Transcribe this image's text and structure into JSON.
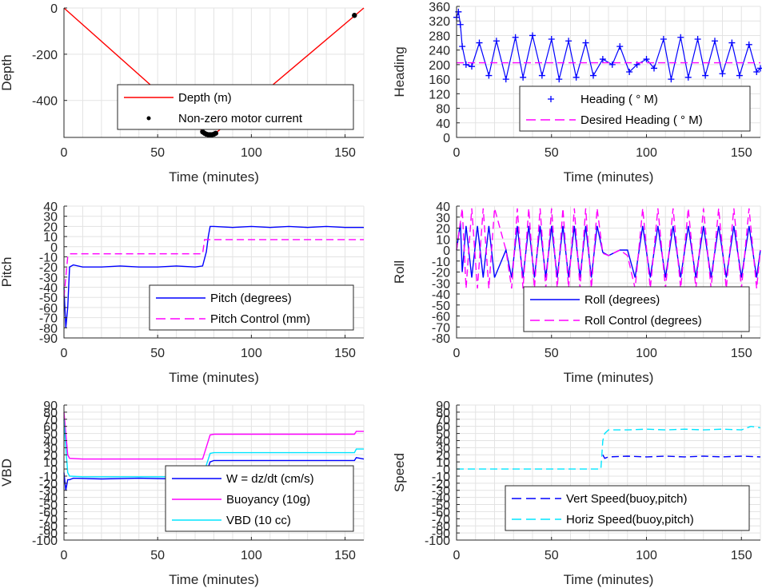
{
  "chart_data": [
    {
      "type": "line",
      "xlabel": "Time (minutes)",
      "ylabel": "Depth",
      "xlim": [
        0,
        160
      ],
      "ylim": [
        -560,
        0
      ],
      "xticks": [
        0,
        50,
        100,
        150
      ],
      "yticks": [
        0,
        -200,
        -400
      ],
      "grid": true,
      "legend": "bottom-right",
      "series": [
        {
          "name": "Depth (m)",
          "color": "#ff0000",
          "style": "solid",
          "x": [
            0,
            76,
            80,
            160
          ],
          "y": [
            0,
            -548,
            -548,
            0
          ]
        },
        {
          "name": "Non-zero motor current",
          "color": "#000000",
          "style": "dots",
          "x": [
            74,
            75,
            76,
            77,
            78,
            79,
            80,
            81,
            155
          ],
          "y": [
            -536,
            -542,
            -546,
            -548,
            -548,
            -548,
            -546,
            -542,
            -32
          ]
        }
      ]
    },
    {
      "type": "line",
      "xlabel": "Time (minutes)",
      "ylabel": "Heading",
      "xlim": [
        0,
        160
      ],
      "ylim": [
        0,
        360
      ],
      "xticks": [
        0,
        50,
        100,
        150
      ],
      "yticks": [
        0,
        40,
        80,
        120,
        160,
        200,
        240,
        280,
        320,
        360
      ],
      "grid": true,
      "legend": "bottom-right",
      "series": [
        {
          "name": "Heading ( ° M)",
          "color": "#0000ff",
          "style": "plus",
          "x": [
            0,
            1,
            2,
            3,
            5,
            8,
            12,
            17,
            21,
            26,
            31,
            35,
            40,
            45,
            50,
            54,
            59,
            63,
            68,
            72,
            77,
            82,
            86,
            91,
            95,
            100,
            104,
            109,
            113,
            118,
            122,
            127,
            131,
            136,
            140,
            145,
            149,
            154,
            158,
            160
          ],
          "y": [
            330,
            345,
            310,
            250,
            200,
            195,
            260,
            170,
            265,
            160,
            275,
            165,
            280,
            170,
            270,
            160,
            265,
            165,
            260,
            170,
            215,
            200,
            250,
            180,
            200,
            215,
            190,
            270,
            160,
            275,
            165,
            270,
            170,
            265,
            175,
            260,
            170,
            255,
            180,
            190
          ]
        },
        {
          "name": "Desired Heading (    ° M)",
          "color": "#ff00ff",
          "style": "dash",
          "x": [
            0,
            160
          ],
          "y": [
            205,
            205
          ]
        }
      ]
    },
    {
      "type": "line",
      "xlabel": "Time (minutes)",
      "ylabel": "Pitch",
      "xlim": [
        0,
        160
      ],
      "ylim": [
        -90,
        40
      ],
      "xticks": [
        0,
        50,
        100,
        150
      ],
      "yticks": [
        40,
        30,
        20,
        10,
        0,
        -10,
        -20,
        -30,
        -40,
        -50,
        -60,
        -70,
        -80,
        -90
      ],
      "grid": true,
      "legend": "bottom-right",
      "series": [
        {
          "name": "Pitch (degrees)",
          "color": "#0000ff",
          "style": "solid",
          "x": [
            0,
            1,
            2,
            3,
            5,
            10,
            20,
            30,
            40,
            50,
            60,
            70,
            74,
            76,
            77,
            78,
            80,
            90,
            100,
            110,
            120,
            130,
            140,
            150,
            160
          ],
          "y": [
            -40,
            -80,
            -60,
            -20,
            -18,
            -20,
            -20,
            -19,
            -20,
            -20,
            -19,
            -20,
            -19,
            -5,
            10,
            20,
            20,
            19,
            20,
            19,
            20,
            19,
            20,
            19,
            19
          ]
        },
        {
          "name": "Pitch Control (mm)",
          "color": "#ff00ff",
          "style": "dash",
          "x": [
            0,
            2,
            3,
            5,
            74,
            75,
            78,
            80,
            160
          ],
          "y": [
            -50,
            -10,
            -7,
            -7,
            -7,
            7,
            7,
            7,
            7
          ]
        }
      ]
    },
    {
      "type": "line",
      "xlabel": "Time (minutes)",
      "ylabel": "Roll",
      "xlim": [
        0,
        160
      ],
      "ylim": [
        -80,
        40
      ],
      "xticks": [
        0,
        50,
        100,
        150
      ],
      "yticks": [
        40,
        30,
        20,
        10,
        0,
        -10,
        -20,
        -30,
        -40,
        -50,
        -60,
        -70,
        -80
      ],
      "grid": true,
      "legend": "bottom-right",
      "series": [
        {
          "name": "Roll (degrees)",
          "color": "#0000ff",
          "style": "solid",
          "x": [
            0,
            2,
            3,
            5,
            8,
            11,
            14,
            17,
            20,
            26,
            29,
            32,
            35,
            38,
            41,
            44,
            47,
            50,
            53,
            56,
            59,
            62,
            65,
            68,
            71,
            74,
            77,
            80,
            86,
            90,
            94,
            98,
            102,
            106,
            110,
            114,
            118,
            122,
            126,
            130,
            134,
            138,
            142,
            146,
            150,
            154,
            158,
            160
          ],
          "y": [
            0,
            25,
            -20,
            22,
            -25,
            22,
            -25,
            22,
            -25,
            0,
            -25,
            22,
            -25,
            22,
            -25,
            22,
            -25,
            22,
            -25,
            22,
            -25,
            22,
            -25,
            22,
            -25,
            22,
            -2,
            -5,
            0,
            0,
            -25,
            22,
            -25,
            22,
            -25,
            22,
            -25,
            22,
            -25,
            22,
            -25,
            22,
            -25,
            22,
            -25,
            22,
            -25,
            0
          ]
        },
        {
          "name": "Roll Control (degrees)",
          "color": "#ff00ff",
          "style": "dash",
          "x": [
            0,
            3,
            5,
            8,
            11,
            14,
            17,
            20,
            26,
            29,
            32,
            35,
            38,
            41,
            44,
            47,
            50,
            53,
            56,
            59,
            62,
            65,
            68,
            71,
            74,
            77,
            80,
            86,
            90,
            94,
            98,
            102,
            106,
            110,
            114,
            118,
            122,
            126,
            130,
            134,
            138,
            142,
            146,
            150,
            154,
            158,
            160
          ],
          "y": [
            0,
            38,
            -35,
            38,
            -35,
            38,
            -35,
            38,
            0,
            -35,
            38,
            -35,
            38,
            -35,
            38,
            -35,
            38,
            -35,
            38,
            -35,
            38,
            -35,
            38,
            -35,
            38,
            -3,
            -5,
            0,
            -5,
            -35,
            38,
            -35,
            38,
            -35,
            38,
            -35,
            38,
            -35,
            38,
            -35,
            38,
            -35,
            38,
            -35,
            38,
            -35,
            0
          ]
        }
      ]
    },
    {
      "type": "line",
      "xlabel": "Time (minutes)",
      "ylabel": "VBD",
      "xlim": [
        0,
        160
      ],
      "ylim": [
        -100,
        90
      ],
      "xticks": [
        0,
        50,
        100,
        150
      ],
      "yticks": [
        90,
        80,
        70,
        60,
        50,
        40,
        30,
        20,
        10,
        0,
        -10,
        -20,
        -30,
        -40,
        -50,
        -60,
        -70,
        -80,
        -90,
        -100
      ],
      "grid": true,
      "legend": "bottom-right",
      "series": [
        {
          "name": "W = dz/dt (cm/s)",
          "color": "#0000ff",
          "style": "solid",
          "x": [
            0,
            1,
            2,
            3,
            5,
            20,
            40,
            60,
            74,
            76,
            78,
            80,
            100,
            120,
            140,
            155,
            156,
            160
          ],
          "y": [
            -5,
            -30,
            -15,
            -15,
            -13,
            -14,
            -13,
            -14,
            -13,
            -5,
            10,
            12,
            12,
            12,
            12,
            12,
            16,
            14
          ]
        },
        {
          "name": "Buoyancy (10g)",
          "color": "#ff00ff",
          "style": "solid",
          "x": [
            0,
            1,
            2,
            3,
            10,
            40,
            74,
            78,
            80,
            120,
            155,
            156,
            160
          ],
          "y": [
            80,
            50,
            20,
            15,
            14,
            14,
            14,
            48,
            49,
            49,
            49,
            53,
            53
          ]
        },
        {
          "name": "VBD (10 cc)",
          "color": "#00e5ff",
          "style": "solid",
          "x": [
            0,
            1,
            2,
            3,
            10,
            40,
            74,
            78,
            80,
            120,
            155,
            156,
            160
          ],
          "y": [
            70,
            30,
            -5,
            -10,
            -11,
            -11,
            -11,
            22,
            23,
            23,
            23,
            28,
            28
          ]
        }
      ]
    },
    {
      "type": "line",
      "xlabel": "Time (minutes)",
      "ylabel": "Speed",
      "xlim": [
        0,
        160
      ],
      "ylim": [
        -100,
        90
      ],
      "xticks": [
        0,
        50,
        100,
        150
      ],
      "yticks": [
        90,
        80,
        70,
        60,
        50,
        40,
        30,
        20,
        10,
        0,
        -10,
        -20,
        -30,
        -40,
        -50,
        -60,
        -70,
        -80,
        -90,
        -100
      ],
      "grid": true,
      "legend": "bottom-right",
      "series": [
        {
          "name": "Vert Speed(buoy,pitch)",
          "color": "#0000ff",
          "style": "dash",
          "x": [
            77,
            78,
            80,
            90,
            100,
            110,
            120,
            130,
            140,
            150,
            160
          ],
          "y": [
            20,
            15,
            17,
            18,
            17,
            18,
            17,
            18,
            17,
            18,
            17
          ]
        },
        {
          "name": "Horiz Speed(buoy,pitch)",
          "color": "#00e5ff",
          "style": "dash",
          "x": [
            0,
            76,
            77,
            78,
            80,
            90,
            100,
            110,
            120,
            130,
            140,
            150,
            155,
            160
          ],
          "y": [
            0,
            0,
            40,
            50,
            55,
            55,
            56,
            55,
            56,
            55,
            56,
            55,
            60,
            58
          ]
        }
      ]
    }
  ]
}
